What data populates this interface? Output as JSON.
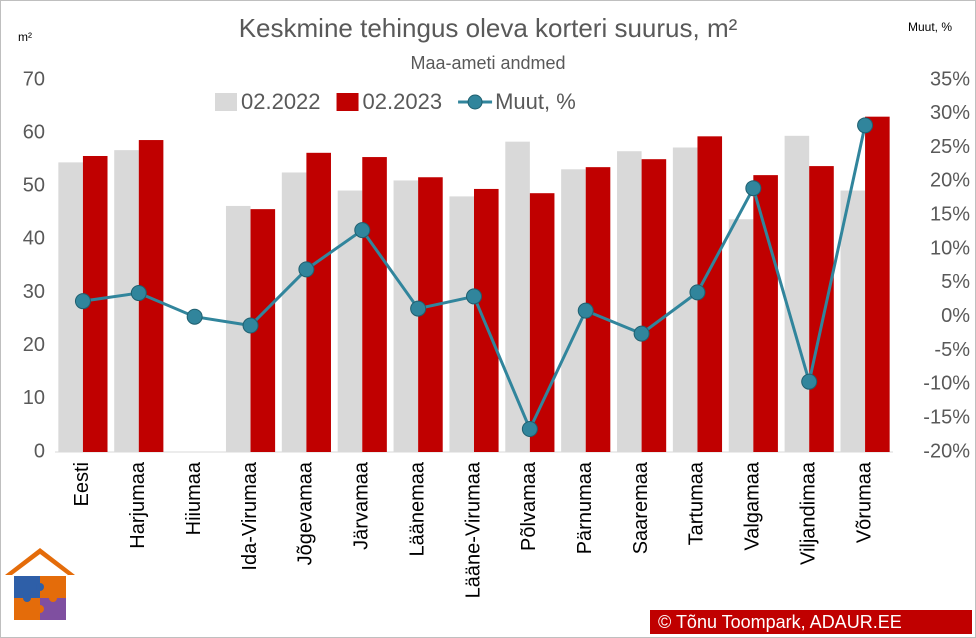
{
  "chart_data": {
    "type": "bar_line",
    "title": "Keskmine tehingus oleva korteri suurus, m²",
    "subtitle": "Maa-ameti andmed",
    "y_label": "m²",
    "y2_label": "Muut, %",
    "source": "© Tõnu Toompark, ADAUR.EE",
    "categories": [
      "Eesti",
      "Harjumaa",
      "Hiiumaa",
      "Ida-Virumaa",
      "Jõgevamaa",
      "Järvamaa",
      "Läänemaa",
      "Lääne-Virumaa",
      "Põlvamaa",
      "Pärnumaa",
      "Saaremaa",
      "Tartumaa",
      "Valgamaa",
      "Viljandimaa",
      "Võrumaa"
    ],
    "series": [
      {
        "name": "02.2022",
        "color": "#d9d9d9",
        "kind": "bar",
        "values": [
          54.5,
          56.8,
          null,
          46.3,
          52.6,
          49.2,
          51.1,
          48.1,
          58.4,
          53.2,
          56.6,
          57.3,
          43.8,
          59.5,
          49.2
        ]
      },
      {
        "name": "02.2023",
        "color": "#c00000",
        "kind": "bar",
        "values": [
          55.7,
          58.7,
          null,
          45.7,
          56.3,
          55.5,
          51.7,
          49.5,
          48.7,
          53.6,
          55.1,
          59.4,
          52.1,
          53.8,
          63.1
        ]
      },
      {
        "name": "Muut, %",
        "color": "#31859c",
        "kind": "line",
        "axis": "y2",
        "values": [
          2.3,
          3.5,
          0,
          -1.3,
          7.0,
          12.8,
          1.2,
          3.0,
          -16.6,
          0.9,
          -2.5,
          3.6,
          19.0,
          -9.6,
          28.3
        ]
      }
    ],
    "ylim": [
      0,
      70
    ],
    "yticks": [
      0,
      10,
      20,
      30,
      40,
      50,
      60,
      70
    ],
    "y2lim": [
      -20,
      35
    ],
    "y2ticks": [
      {
        "value": -20,
        "label": "-20%"
      },
      {
        "value": -15,
        "label": "-15%"
      },
      {
        "value": -10,
        "label": "-10%"
      },
      {
        "value": -5,
        "label": "-5%"
      },
      {
        "value": 0,
        "label": "0%"
      },
      {
        "value": 5,
        "label": "5%"
      },
      {
        "value": 10,
        "label": "10%"
      },
      {
        "value": 15,
        "label": "15%"
      },
      {
        "value": 20,
        "label": "20%"
      },
      {
        "value": 25,
        "label": "25%"
      },
      {
        "value": 30,
        "label": "30%"
      },
      {
        "value": 35,
        "label": "35%"
      }
    ],
    "grid": false
  }
}
